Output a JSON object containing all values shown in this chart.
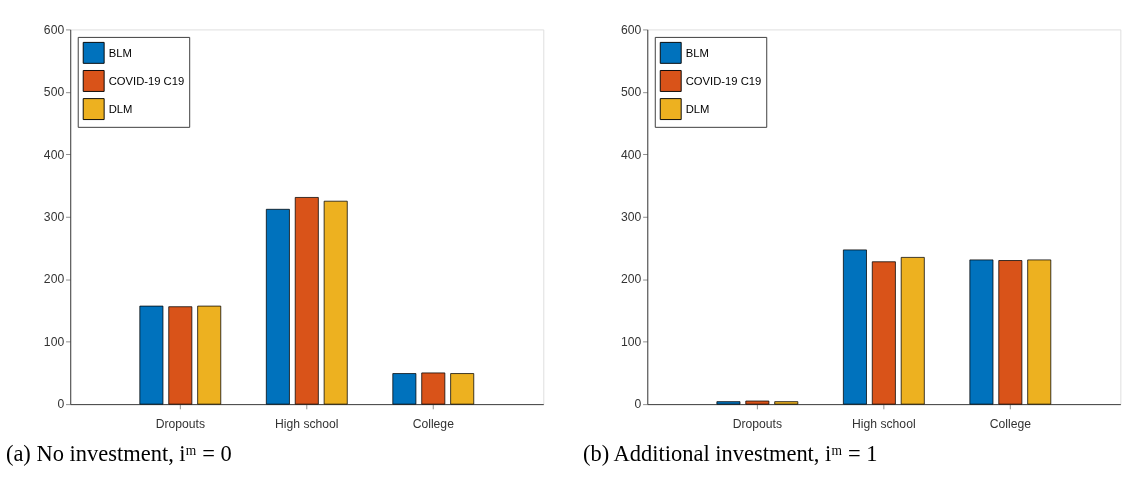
{
  "chart_data": [
    {
      "type": "bar",
      "title": "(a) No investment, iᵐ = 0",
      "categories": [
        "Dropouts",
        "High school",
        "College"
      ],
      "series": [
        {
          "name": "BLM",
          "color": "#0072bd",
          "values": [
            157,
            312,
            49
          ]
        },
        {
          "name": "COVID-19 C19",
          "color": "#d95319",
          "values": [
            156,
            331,
            50
          ]
        },
        {
          "name": "DLM",
          "color": "#edb120",
          "values": [
            157,
            325,
            49
          ]
        }
      ],
      "ylim": [
        0,
        600
      ],
      "yticks": [
        0,
        100,
        200,
        300,
        400,
        500,
        600
      ],
      "legend": "top left",
      "grid": false
    },
    {
      "type": "bar",
      "title": "(b) Additional investment, iᵐ = 1",
      "categories": [
        "Dropouts",
        "High school",
        "College"
      ],
      "series": [
        {
          "name": "BLM",
          "color": "#0072bd",
          "values": [
            4,
            247,
            231
          ]
        },
        {
          "name": "COVID-19 C19",
          "color": "#d95319",
          "values": [
            5,
            228,
            230
          ]
        },
        {
          "name": "DLM",
          "color": "#edb120",
          "values": [
            4,
            235,
            231
          ]
        }
      ],
      "ylim": [
        0,
        600
      ],
      "yticks": [
        0,
        100,
        200,
        300,
        400,
        500,
        600
      ],
      "legend": "top left",
      "grid": false
    }
  ]
}
